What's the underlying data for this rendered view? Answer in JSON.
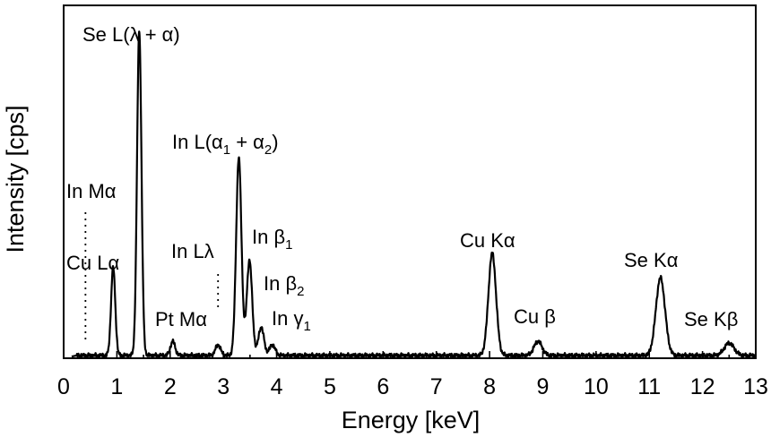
{
  "chart_data": {
    "type": "line",
    "xlabel": "Energy [keV]",
    "ylabel": "Intensity [cps]",
    "xlim": [
      0,
      13
    ],
    "ylim": [
      0,
      1.0
    ],
    "y_ticks_shown": false,
    "x_ticks": [
      0,
      1,
      2,
      3,
      4,
      5,
      6,
      7,
      8,
      9,
      10,
      11,
      12,
      13
    ],
    "grid": false,
    "legend": "none",
    "series": [
      {
        "baseline": 0.008,
        "peaks": [
          {
            "label": "Cu Lα",
            "energy": 0.93,
            "height": 0.25
          },
          {
            "label": "Se L(λ + α)",
            "energy": 1.42,
            "height": 0.92
          },
          {
            "label": "Pt Mα",
            "energy": 2.05,
            "height": 0.04
          },
          {
            "label": "In Lλ",
            "energy": 2.9,
            "height": 0.03
          },
          {
            "label": "In L(α1 + α2)",
            "energy": 3.29,
            "height": 0.56
          },
          {
            "label": "In β1",
            "energy": 3.49,
            "height": 0.27
          },
          {
            "label": "In β2",
            "energy": 3.71,
            "height": 0.08
          },
          {
            "label": "In γ1",
            "energy": 3.92,
            "height": 0.03
          },
          {
            "label": "Cu Kα",
            "energy": 8.05,
            "height": 0.29
          },
          {
            "label": "Cu β",
            "energy": 8.91,
            "height": 0.04
          },
          {
            "label": "Se Kα",
            "energy": 11.21,
            "height": 0.22
          },
          {
            "label": "Se Kβ",
            "energy": 12.5,
            "height": 0.035
          }
        ]
      }
    ],
    "markers": [
      {
        "label": "In Mα",
        "energy": 0.41
      },
      {
        "label": "In Lλ",
        "energy": 2.9
      }
    ]
  }
}
